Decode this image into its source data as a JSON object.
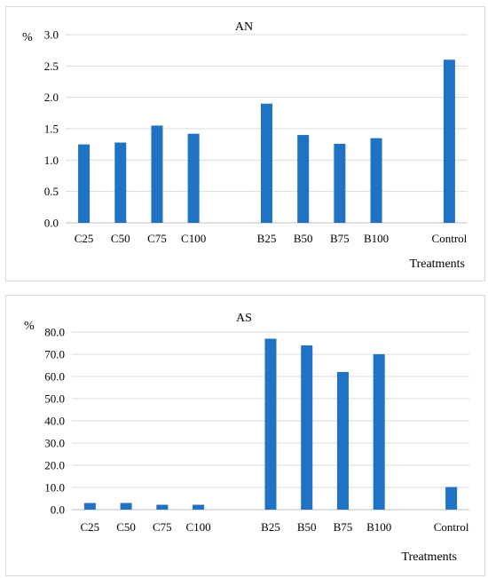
{
  "bar_color": "#1f72c4",
  "chart_data": [
    {
      "type": "bar",
      "title": "AN",
      "ylabel": "%",
      "xlabel": "Treatments",
      "ylim": [
        0,
        3.0
      ],
      "yticks": [
        "0.0",
        "0.5",
        "1.0",
        "1.5",
        "2.0",
        "2.5",
        "3.0"
      ],
      "categories": [
        "C25",
        "C50",
        "C75",
        "C100",
        "",
        "B25",
        "B50",
        "B75",
        "B100",
        "",
        "Control"
      ],
      "values": [
        1.25,
        1.28,
        1.55,
        1.42,
        null,
        1.9,
        1.4,
        1.26,
        1.35,
        null,
        2.6
      ],
      "grid": true,
      "legend": "none"
    },
    {
      "type": "bar",
      "title": "AS",
      "ylabel": "%",
      "xlabel": "Treatments",
      "ylim": [
        0,
        80.0
      ],
      "yticks": [
        "0.0",
        "10.0",
        "20.0",
        "30.0",
        "40.0",
        "50.0",
        "60.0",
        "70.0",
        "80.0"
      ],
      "categories": [
        "C25",
        "C50",
        "C75",
        "C100",
        "",
        "B25",
        "B50",
        "B75",
        "B100",
        "",
        "Control"
      ],
      "values": [
        3.0,
        3.0,
        2.2,
        2.2,
        null,
        77.0,
        74.0,
        62.0,
        70.0,
        null,
        10.2
      ],
      "grid": true,
      "legend": "none"
    }
  ]
}
